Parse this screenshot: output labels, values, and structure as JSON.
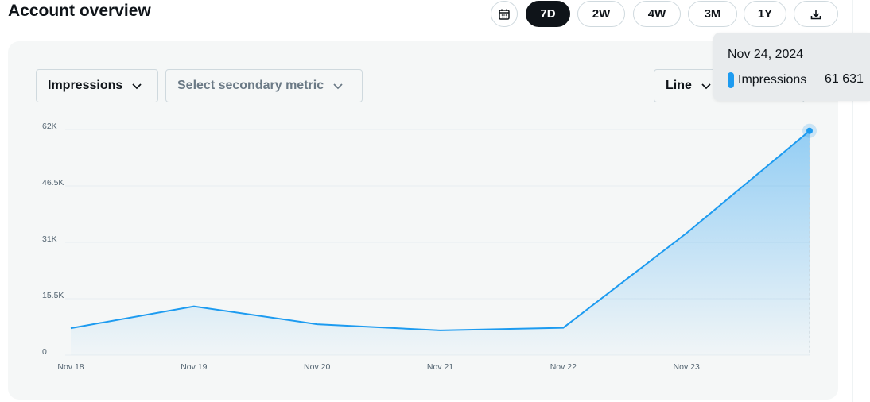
{
  "header": {
    "title": "Account overview",
    "ranges": [
      {
        "label": "7D",
        "active": true
      },
      {
        "label": "2W",
        "active": false
      },
      {
        "label": "4W",
        "active": false
      },
      {
        "label": "3M",
        "active": false
      },
      {
        "label": "1Y",
        "active": false
      }
    ],
    "calendar_icon": "calendar-icon",
    "download_icon": "download-icon"
  },
  "controls": {
    "primary_metric": "Impressions",
    "secondary_metric_placeholder": "Select secondary metric",
    "chart_type": "Line"
  },
  "tooltip": {
    "date": "Nov 24, 2024",
    "series": "Impressions",
    "value": "61 631"
  },
  "colors": {
    "accent": "#1d9bf0",
    "active_button": "#0f1419",
    "card_bg": "#f5f7f7"
  },
  "chart_data": {
    "type": "area",
    "categories": [
      "Nov 18",
      "Nov 19",
      "Nov 20",
      "Nov 21",
      "Nov 22",
      "Nov 23",
      "Nov 24"
    ],
    "series": [
      {
        "name": "Impressions",
        "values": [
          7400,
          13400,
          8500,
          6800,
          7500,
          33500,
          61631
        ]
      }
    ],
    "y_ticks": [
      "0",
      "15.5K",
      "31K",
      "46.5K",
      "62K"
    ],
    "y_tick_values": [
      0,
      15500,
      31000,
      46500,
      62000
    ],
    "ylim": [
      0,
      62000
    ],
    "grid": true,
    "highlighted_point": "Nov 24"
  }
}
